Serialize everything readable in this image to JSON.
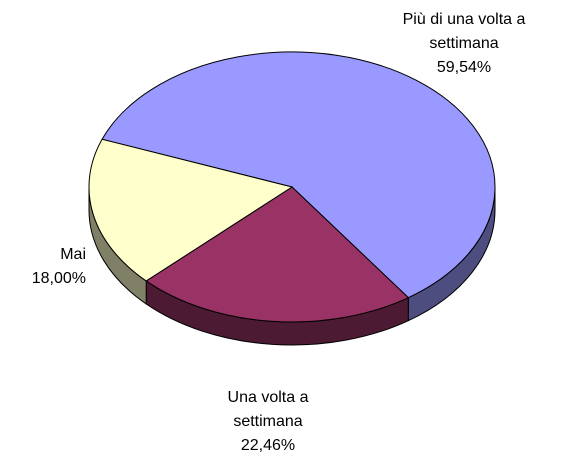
{
  "chart_data": {
    "type": "pie",
    "categories": [
      "Più di una volta a settimana",
      "Una volta a settimana",
      "Mai"
    ],
    "values": [
      59.54,
      22.46,
      18.0
    ],
    "value_labels": [
      "59,54%",
      "22,46%",
      "18,00%"
    ],
    "colors": [
      "#9999ff",
      "#993366",
      "#ffffcc"
    ]
  }
}
